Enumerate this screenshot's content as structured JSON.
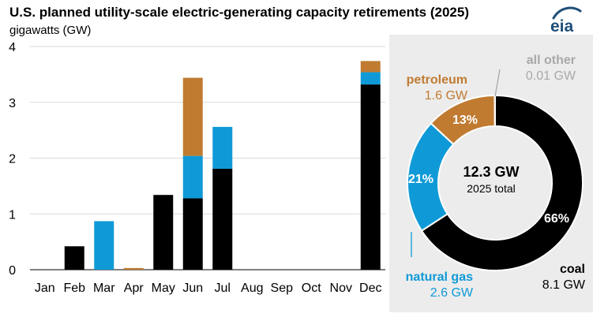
{
  "header": {
    "title": "U.S. planned utility-scale electric-generating capacity retirements (2025)",
    "units": "gigawatts (GW)",
    "logo_text": "eia"
  },
  "colors": {
    "coal": "#000000",
    "natural_gas": "#0f9ad7",
    "petroleum": "#c07b31",
    "all_other": "#a8a8a8",
    "gridline": "#d9d9d9",
    "logo": "#1f4e79"
  },
  "chart_data": [
    {
      "type": "bar",
      "stacked": true,
      "title": "U.S. planned utility-scale electric-generating capacity retirements (2025)",
      "ylabel": "gigawatts (GW)",
      "ylim": [
        0,
        4
      ],
      "yticks": [
        "0",
        "1",
        "2",
        "3",
        "4"
      ],
      "categories": [
        "Jan",
        "Feb",
        "Mar",
        "Apr",
        "May",
        "Jun",
        "Jul",
        "Aug",
        "Sep",
        "Oct",
        "Nov",
        "Dec"
      ],
      "series": [
        {
          "name": "coal",
          "values": [
            0,
            0.42,
            0,
            0,
            1.34,
            1.28,
            1.81,
            0,
            0,
            0,
            0,
            3.32
          ]
        },
        {
          "name": "natural gas",
          "values": [
            0,
            0,
            0.87,
            0,
            0,
            0.76,
            0.75,
            0,
            0,
            0,
            0,
            0.22
          ]
        },
        {
          "name": "petroleum",
          "values": [
            0,
            0,
            0,
            0.03,
            0,
            1.4,
            0,
            0,
            0,
            0,
            0,
            0.2
          ]
        }
      ]
    },
    {
      "type": "pie",
      "donut": true,
      "center_value": "12.3 GW",
      "center_label": "2025 total",
      "slices": [
        {
          "name": "coal",
          "label": "coal",
          "value": 8.1,
          "value_text": "8.1 GW",
          "percent": "66%"
        },
        {
          "name": "natural gas",
          "label": "natural gas",
          "value": 2.6,
          "value_text": "2.6 GW",
          "percent": "21%"
        },
        {
          "name": "petroleum",
          "label": "petroleum",
          "value": 1.6,
          "value_text": "1.6 GW",
          "percent": "13%"
        },
        {
          "name": "all other",
          "label": "all other",
          "value": 0.01,
          "value_text": "0.01 GW",
          "percent": ""
        }
      ]
    }
  ]
}
